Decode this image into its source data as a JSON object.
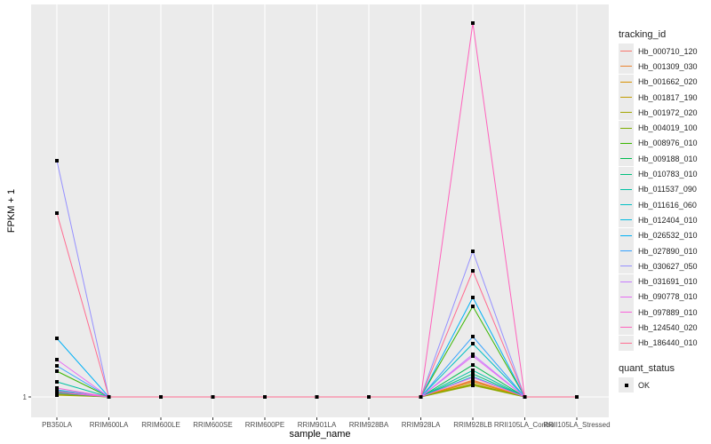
{
  "chart_data": {
    "type": "line",
    "title": "",
    "xlabel": "sample_name",
    "ylabel": "FPKM + 1",
    "y_ticks": [
      "1"
    ],
    "ylim": [
      -1.3,
      45.2
    ],
    "grid": true,
    "legend_position": "right",
    "categories": [
      "PB350LA",
      "RRIM600LA",
      "RRIM600LE",
      "RRIM600SE",
      "RRIM600PE",
      "RRIM901LA",
      "RRIM928BA",
      "RRIM928LA",
      "RRIM928LB",
      "RRII105LA_Control",
      "RRII105LA_Stressed"
    ],
    "legend_title": "tracking_id",
    "series": [
      {
        "name": "Hb_000710_120",
        "color": "#F8766D",
        "values": [
          1.3,
          1,
          1,
          1,
          1,
          1,
          1,
          1,
          2.8,
          1,
          1
        ]
      },
      {
        "name": "Hb_001309_030",
        "color": "#EA8331",
        "values": [
          1.4,
          1,
          1,
          1,
          1,
          1,
          1,
          1,
          2.9,
          1,
          1
        ]
      },
      {
        "name": "Hb_001662_020",
        "color": "#D89000",
        "values": [
          1.5,
          1,
          1,
          1,
          1,
          1,
          1,
          1,
          2.7,
          1,
          1
        ]
      },
      {
        "name": "Hb_001817_190",
        "color": "#C09B00",
        "values": [
          1.3,
          1,
          1,
          1,
          1,
          1,
          1,
          1,
          2.5,
          1,
          1
        ]
      },
      {
        "name": "Hb_001972_020",
        "color": "#A3A500",
        "values": [
          1.2,
          1,
          1,
          1,
          1,
          1,
          1,
          1,
          2.3,
          1,
          1
        ]
      },
      {
        "name": "Hb_004019_100",
        "color": "#7CAE00",
        "values": [
          1.4,
          1,
          1,
          1,
          1,
          1,
          1,
          1,
          2.4,
          1,
          1
        ]
      },
      {
        "name": "Hb_008976_010",
        "color": "#39B600",
        "values": [
          3.9,
          1,
          1,
          1,
          1,
          1,
          1,
          1,
          11.2,
          1,
          1
        ]
      },
      {
        "name": "Hb_009188_010",
        "color": "#00BB4E",
        "values": [
          1.6,
          1,
          1,
          1,
          1,
          1,
          1,
          1,
          4.6,
          1,
          1
        ]
      },
      {
        "name": "Hb_010783_010",
        "color": "#00BF7D",
        "values": [
          1.4,
          1,
          1,
          1,
          1,
          1,
          1,
          1,
          3.6,
          1,
          1
        ]
      },
      {
        "name": "Hb_011537_090",
        "color": "#00C1A3",
        "values": [
          2.7,
          1,
          1,
          1,
          1,
          1,
          1,
          1,
          4.0,
          1,
          1
        ]
      },
      {
        "name": "Hb_011616_060",
        "color": "#00BFC4",
        "values": [
          1.8,
          1,
          1,
          1,
          1,
          1,
          1,
          1,
          7.0,
          1,
          1
        ]
      },
      {
        "name": "Hb_012404_010",
        "color": "#00BAE0",
        "values": [
          1.5,
          1,
          1,
          1,
          1,
          1,
          1,
          1,
          3.3,
          1,
          1
        ]
      },
      {
        "name": "Hb_026532_010",
        "color": "#00B0F6",
        "values": [
          7.6,
          1,
          1,
          1,
          1,
          1,
          1,
          1,
          12.2,
          1,
          1
        ]
      },
      {
        "name": "Hb_027890_010",
        "color": "#35A2FF",
        "values": [
          4.5,
          1,
          1,
          1,
          1,
          1,
          1,
          1,
          7.8,
          1,
          1
        ]
      },
      {
        "name": "Hb_030627_050",
        "color": "#9590FF",
        "values": [
          27.6,
          1,
          1,
          1,
          1,
          1,
          1,
          1,
          17.4,
          1,
          1
        ]
      },
      {
        "name": "Hb_031691_010",
        "color": "#C77CFF",
        "values": [
          1.7,
          1,
          1,
          1,
          1,
          1,
          1,
          1,
          5.8,
          1,
          1
        ]
      },
      {
        "name": "Hb_090778_010",
        "color": "#E76BF3",
        "values": [
          5.2,
          1,
          1,
          1,
          1,
          1,
          1,
          1,
          5.6,
          1,
          1
        ]
      },
      {
        "name": "Hb_097889_010",
        "color": "#FA62DB",
        "values": [
          2.0,
          1,
          1,
          1,
          1,
          1,
          1,
          1,
          3.2,
          1,
          1
        ]
      },
      {
        "name": "Hb_124540_020",
        "color": "#FF62BC",
        "values": [
          1.5,
          1,
          1,
          1,
          1,
          1,
          1,
          1,
          43.1,
          1,
          1
        ]
      },
      {
        "name": "Hb_186440_010",
        "color": "#FF6C91",
        "values": [
          21.7,
          1,
          1,
          1,
          1,
          1,
          1,
          1,
          15.2,
          1,
          1
        ]
      }
    ],
    "point_legend_title": "quant_status",
    "point_legend_items": [
      "OK"
    ]
  }
}
